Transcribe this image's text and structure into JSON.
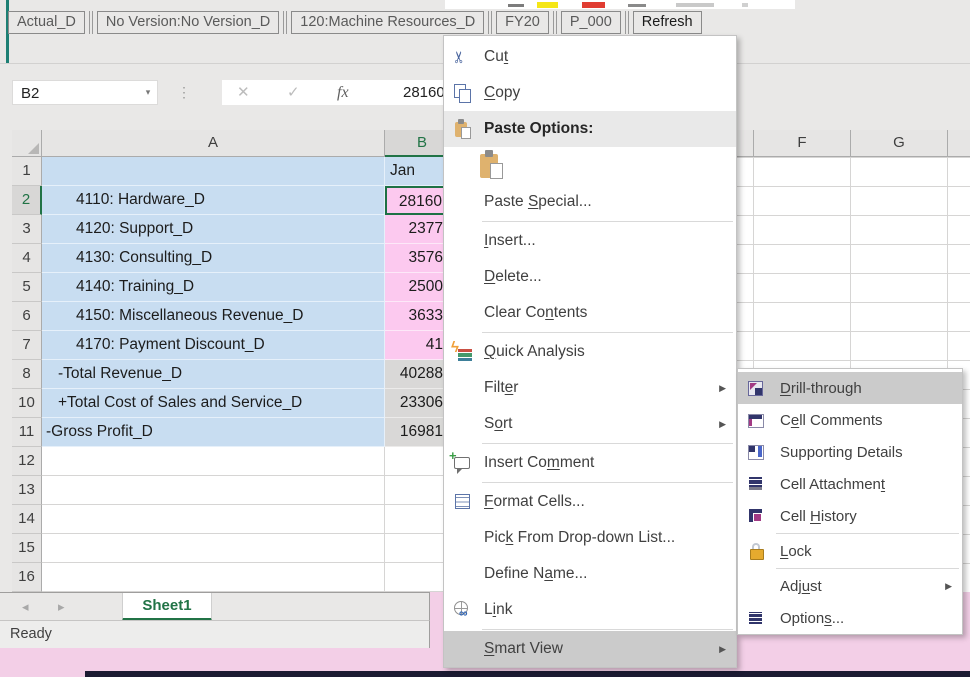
{
  "top_ribbon_sliver": {
    "fill_color_swatch": "#f5e616",
    "font_color_swatch": "#e03c31"
  },
  "pov": {
    "buttons": [
      {
        "name": "pov-actual",
        "label": "Actual_D"
      },
      {
        "name": "pov-version",
        "label": "No Version:No Version_D"
      },
      {
        "name": "pov-entity",
        "label": "120:Machine Resources_D"
      },
      {
        "name": "pov-year",
        "label": "FY20"
      },
      {
        "name": "pov-period",
        "label": "P_000"
      },
      {
        "name": "refresh",
        "label": "Refresh",
        "emphasis": true
      }
    ]
  },
  "formula_bar": {
    "name_box": "B2",
    "name_caret": "▾",
    "dots": "⋮",
    "cancel_glyph": "✕",
    "enter_glyph": "✓",
    "fx_glyph": "fx",
    "value": "28160"
  },
  "grid": {
    "left_columns": [
      "A",
      "B"
    ],
    "right_columns": [
      "F",
      "G"
    ],
    "selected_cell": "B2",
    "rows": [
      {
        "num": "1",
        "label": "",
        "value": "Jan",
        "a_bg": "blue",
        "b_bg": "blue",
        "value_align": "left",
        "indent": 0
      },
      {
        "num": "2",
        "label": "4110: Hardware_D",
        "value": "28160",
        "a_bg": "blue",
        "b_bg": "pink",
        "indent": 2,
        "selected": true
      },
      {
        "num": "3",
        "label": "4120: Support_D",
        "value": "2377",
        "a_bg": "blue",
        "b_bg": "pink",
        "indent": 2
      },
      {
        "num": "4",
        "label": "4130: Consulting_D",
        "value": "3576",
        "a_bg": "blue",
        "b_bg": "pink",
        "indent": 2
      },
      {
        "num": "5",
        "label": "4140: Training_D",
        "value": "2500",
        "a_bg": "blue",
        "b_bg": "pink",
        "indent": 2
      },
      {
        "num": "6",
        "label": "4150: Miscellaneous Revenue_D",
        "value": "3633",
        "a_bg": "blue",
        "b_bg": "pink",
        "indent": 2
      },
      {
        "num": "7",
        "label": "4170: Payment Discount_D",
        "value": "41",
        "a_bg": "blue",
        "b_bg": "pink",
        "indent": 2
      },
      {
        "num": "8",
        "label": "-Total Revenue_D",
        "value": "40288",
        "a_bg": "blue",
        "b_bg": "gray",
        "indent": 1
      },
      {
        "num": "10",
        "label": "+Total Cost of Sales and Service_D",
        "value": "23306",
        "a_bg": "blue",
        "b_bg": "gray",
        "indent": 1
      },
      {
        "num": "11",
        "label": "-Gross Profit_D",
        "value": "16981",
        "a_bg": "blue",
        "b_bg": "gray",
        "indent": 0
      },
      {
        "num": "12",
        "label": "",
        "value": "",
        "a_bg": "white",
        "b_bg": "white",
        "indent": 0
      },
      {
        "num": "13",
        "label": "",
        "value": "",
        "a_bg": "white",
        "b_bg": "white",
        "indent": 0
      },
      {
        "num": "14",
        "label": "",
        "value": "",
        "a_bg": "white",
        "b_bg": "white",
        "indent": 0
      },
      {
        "num": "15",
        "label": "",
        "value": "",
        "a_bg": "white",
        "b_bg": "white",
        "indent": 0
      },
      {
        "num": "16",
        "label": "",
        "value": "",
        "a_bg": "white",
        "b_bg": "white",
        "indent": 0
      }
    ]
  },
  "sheet": {
    "tab": "Sheet1",
    "status": "Ready",
    "nav_prev": "◂",
    "nav_next": "▸"
  },
  "context_menu": {
    "items": [
      {
        "name": "cut",
        "icon": "cut-icon",
        "pre": "Cu",
        "key": "t",
        "post": ""
      },
      {
        "name": "copy",
        "icon": "copy-icon",
        "pre": "",
        "key": "C",
        "post": "opy"
      },
      {
        "name": "paste-options",
        "icon": "paste-options-icon",
        "pre": "Paste Options:",
        "bold": true,
        "highlight": "light"
      },
      {
        "name": "paste-keep-source-formatting",
        "type": "paste_variant",
        "icon": "paste-keep-formatting-icon"
      },
      {
        "name": "paste-special",
        "pre": "Paste ",
        "key": "S",
        "post": "pecial..."
      },
      {
        "type": "sep"
      },
      {
        "name": "insert",
        "pre": "",
        "key": "I",
        "post": "nsert..."
      },
      {
        "name": "delete",
        "pre": "",
        "key": "D",
        "post": "elete..."
      },
      {
        "name": "clear-contents",
        "pre": "Clear Co",
        "key": "n",
        "post": "tents"
      },
      {
        "type": "sep"
      },
      {
        "name": "quick-analysis",
        "icon": "quick-analysis-icon",
        "pre": "",
        "key": "Q",
        "post": "uick Analysis"
      },
      {
        "name": "filter",
        "pre": "Filt",
        "key": "e",
        "post": "r",
        "arrow": true
      },
      {
        "name": "sort",
        "pre": "S",
        "key": "o",
        "post": "rt",
        "arrow": true
      },
      {
        "type": "sep"
      },
      {
        "name": "insert-comment",
        "icon": "insert-comment-icon",
        "pre": "Insert Co",
        "key": "m",
        "post": "ment"
      },
      {
        "type": "sep"
      },
      {
        "name": "format-cells",
        "icon": "format-cells-icon",
        "pre": "",
        "key": "F",
        "post": "ormat Cells..."
      },
      {
        "name": "pick-from-dropdown-list",
        "pre": "Pic",
        "key": "k",
        "post": " From Drop-down List..."
      },
      {
        "name": "define-name",
        "pre": "Define N",
        "key": "a",
        "post": "me..."
      },
      {
        "name": "link",
        "icon": "link-icon",
        "pre": "L",
        "key": "i",
        "post": "nk"
      },
      {
        "type": "sep"
      },
      {
        "name": "smart-view",
        "pre": "",
        "key": "S",
        "post": "mart View",
        "arrow": true,
        "highlight": "dark"
      }
    ]
  },
  "smartview_submenu": {
    "items": [
      {
        "name": "drill-through",
        "icon": "drill-through-icon",
        "pre": "",
        "key": "D",
        "post": "rill-through",
        "highlight": "dark"
      },
      {
        "name": "cell-comments",
        "icon": "cell-comments-icon",
        "pre": "C",
        "key": "e",
        "post": "ll Comments"
      },
      {
        "name": "supporting-details",
        "icon": "supporting-details-icon",
        "pre": "Supporting Details"
      },
      {
        "name": "cell-attachment",
        "icon": "cell-attachment-icon",
        "pre": "Cell Attachmen",
        "key": "t",
        "post": ""
      },
      {
        "name": "cell-history",
        "icon": "cell-history-icon",
        "pre": "Cell ",
        "key": "H",
        "post": "istory"
      },
      {
        "type": "sep"
      },
      {
        "name": "lock",
        "icon": "lock-icon",
        "pre": "",
        "key": "L",
        "post": "ock"
      },
      {
        "type": "sep"
      },
      {
        "name": "adjust",
        "pre": "Adj",
        "key": "u",
        "post": "st",
        "arrow": true
      },
      {
        "name": "options",
        "icon": "options-icon",
        "pre": "Option",
        "key": "s",
        "post": "..."
      }
    ]
  },
  "colors": {
    "accent_green": "#217346",
    "cell_blue": "#c8ddf1",
    "cell_pink": "#fcc9ef",
    "cell_gray": "#d9d8d7",
    "menu_highlight": "#cbcbcb",
    "desktop_pink": "#f3cfe7",
    "taskbar_navy": "#1c1b33"
  }
}
